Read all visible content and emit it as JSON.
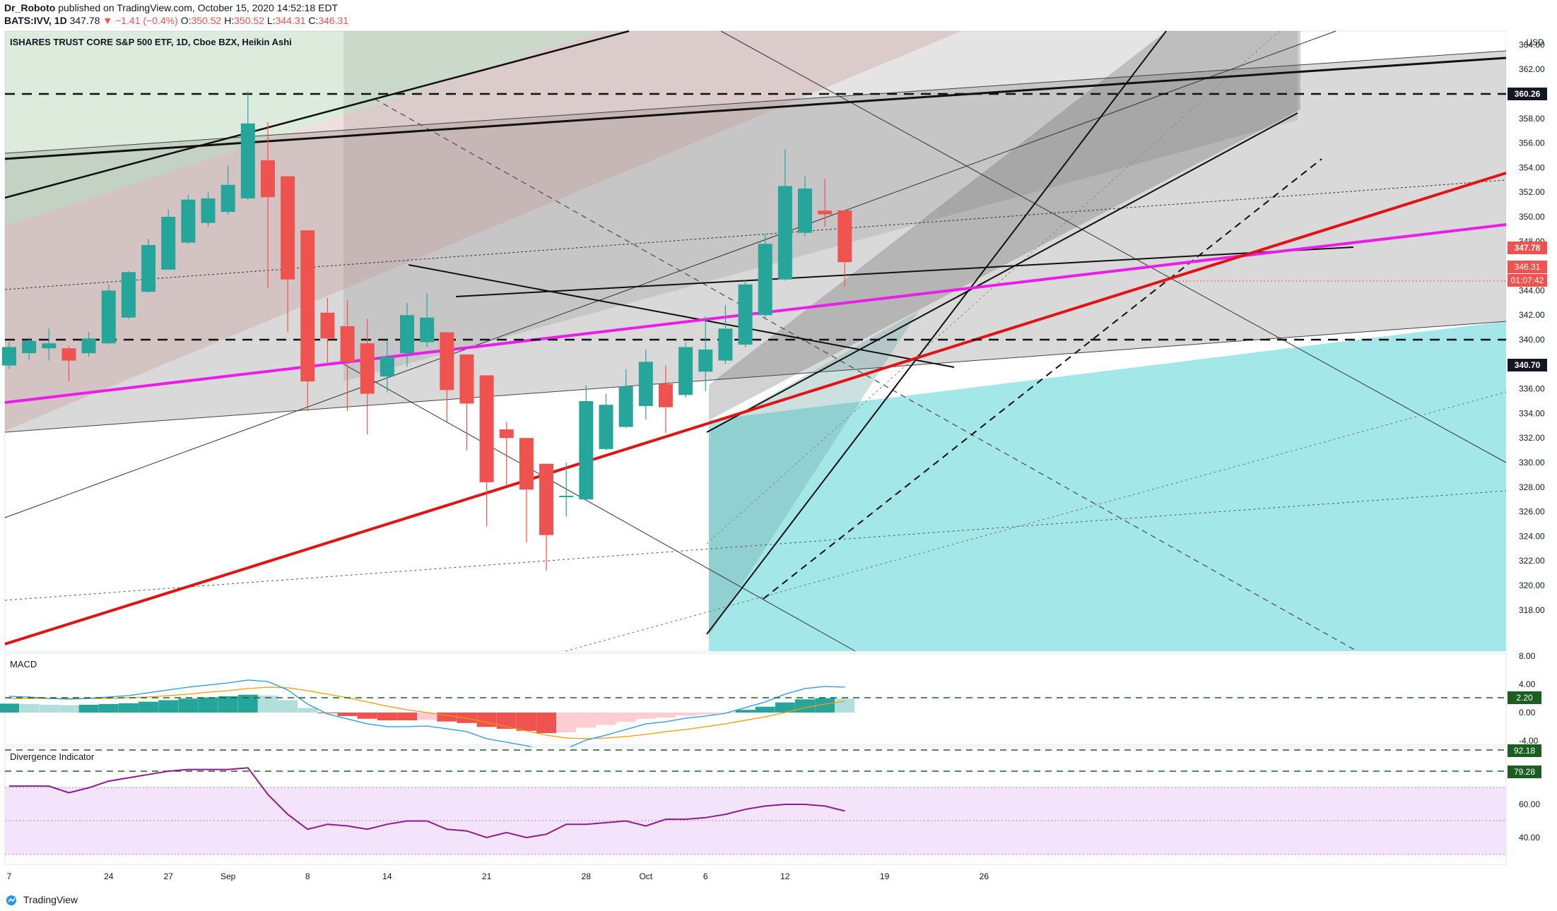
{
  "header": {
    "author": "Dr_Roboto",
    "published_text": "published on TradingView.com, October 15, 2020 14:52:18 EDT",
    "symbol": "BATS:IVV,",
    "interval": "1D",
    "last": "347.78",
    "arrow": "▼",
    "change": "−1.41 (−0.4%)",
    "open_label": "O:",
    "open": "350.52",
    "high_label": "H:",
    "high": "350.52",
    "low_label": "L:",
    "low": "344.31",
    "close_label": "C:",
    "close": "346.31"
  },
  "chart_title": "ISHARES TRUST CORE S&P 500 ETF, 1D, Cboe BZX, Heikin Ashi",
  "currency": "USD",
  "price_axis": [
    "364.00",
    "362.00",
    "360.00",
    "358.00",
    "356.00",
    "354.00",
    "352.00",
    "350.00",
    "348.00",
    "346.00",
    "344.00",
    "342.00",
    "340.00",
    "338.00",
    "336.00",
    "334.00",
    "332.00",
    "330.00",
    "328.00",
    "326.00",
    "324.00",
    "322.00",
    "320.00",
    "318.00"
  ],
  "price_labels": {
    "level_high": "360.26",
    "level_low": "340.70",
    "last_price": "347.78",
    "close_price": "346.31",
    "countdown": "01:07:42"
  },
  "time_axis": [
    "7",
    "24",
    "27",
    "Sep",
    "8",
    "14",
    "21",
    "28",
    "Oct",
    "6",
    "12",
    "19",
    "26"
  ],
  "macd": {
    "label": "MACD",
    "axis": [
      "8.00",
      "4.00",
      "0.00",
      "-4.00"
    ],
    "level": "2.20"
  },
  "divergence": {
    "label": "Divergence Indicator",
    "axis": [
      "60.00",
      "40.00"
    ],
    "level_upper": "92.18",
    "level_lower": "79.28"
  },
  "footer": {
    "brand": "TradingView"
  },
  "colors": {
    "up": "#26a69a",
    "down": "#ef5350",
    "magenta": "#e91ee9",
    "trend_red": "#e01414",
    "macd_line": "#2196f3",
    "signal_line": "#ff9800",
    "div_line": "#8e1c8e"
  },
  "chart_data": {
    "type": "candlestick",
    "title": "ISHARES TRUST CORE S&P 500 ETF, 1D, Cboe BZX, Heikin Ashi",
    "y_range": [
      317,
      365
    ],
    "candles": [
      {
        "o": 337.9,
        "c": 339.4,
        "h": 339.8,
        "l": 337.6
      },
      {
        "o": 338.9,
        "c": 339.9,
        "h": 340.2,
        "l": 338.3
      },
      {
        "o": 339.3,
        "c": 339.7,
        "h": 340.9,
        "l": 338.3
      },
      {
        "o": 339.3,
        "c": 338.3,
        "h": 339.5,
        "l": 336.6
      },
      {
        "o": 338.9,
        "c": 340.1,
        "h": 340.6,
        "l": 338.6
      },
      {
        "o": 339.7,
        "c": 344.0,
        "h": 344.5,
        "l": 339.6
      },
      {
        "o": 341.8,
        "c": 345.5,
        "h": 345.6,
        "l": 341.7
      },
      {
        "o": 343.9,
        "c": 347.7,
        "h": 348.2,
        "l": 343.8
      },
      {
        "o": 345.7,
        "c": 350.0,
        "h": 350.6,
        "l": 345.7
      },
      {
        "o": 347.9,
        "c": 351.4,
        "h": 351.8,
        "l": 347.8
      },
      {
        "o": 349.5,
        "c": 351.5,
        "h": 352.0,
        "l": 349.2
      },
      {
        "o": 350.4,
        "c": 352.6,
        "h": 354.2,
        "l": 350.2
      },
      {
        "o": 351.5,
        "c": 357.6,
        "h": 360.2,
        "l": 351.4
      },
      {
        "o": 354.6,
        "c": 351.6,
        "h": 357.7,
        "l": 344.2
      },
      {
        "o": 353.3,
        "c": 344.9,
        "h": 353.3,
        "l": 340.6
      },
      {
        "o": 348.9,
        "c": 336.6,
        "h": 348.9,
        "l": 334.2
      },
      {
        "o": 342.2,
        "c": 340.1,
        "h": 343.4,
        "l": 337.9
      },
      {
        "o": 341.1,
        "c": 338.2,
        "h": 343.2,
        "l": 334.2
      },
      {
        "o": 339.7,
        "c": 335.6,
        "h": 341.7,
        "l": 332.3
      },
      {
        "o": 337.0,
        "c": 338.6,
        "h": 339.9,
        "l": 335.7
      },
      {
        "o": 338.9,
        "c": 342.0,
        "h": 343.0,
        "l": 337.8
      },
      {
        "o": 339.8,
        "c": 341.8,
        "h": 343.8,
        "l": 339.4
      },
      {
        "o": 340.6,
        "c": 335.9,
        "h": 340.6,
        "l": 333.3
      },
      {
        "o": 338.8,
        "c": 334.8,
        "h": 338.8,
        "l": 331.0
      },
      {
        "o": 337.1,
        "c": 328.4,
        "h": 337.1,
        "l": 324.8
      },
      {
        "o": 332.7,
        "c": 332.0,
        "h": 333.3,
        "l": 328.1
      },
      {
        "o": 332.0,
        "c": 327.8,
        "h": 332.0,
        "l": 323.5
      },
      {
        "o": 329.9,
        "c": 324.1,
        "h": 329.9,
        "l": 321.2
      },
      {
        "o": 327.2,
        "c": 327.3,
        "h": 330.0,
        "l": 325.6
      },
      {
        "o": 327.0,
        "c": 335.0,
        "h": 336.3,
        "l": 327.0
      },
      {
        "o": 331.1,
        "c": 334.7,
        "h": 335.6,
        "l": 331.0
      },
      {
        "o": 332.9,
        "c": 336.2,
        "h": 337.6,
        "l": 332.8
      },
      {
        "o": 334.6,
        "c": 338.2,
        "h": 339.2,
        "l": 333.5
      },
      {
        "o": 336.4,
        "c": 334.5,
        "h": 337.9,
        "l": 332.4
      },
      {
        "o": 335.5,
        "c": 339.4,
        "h": 339.8,
        "l": 335.3
      },
      {
        "o": 337.4,
        "c": 339.2,
        "h": 341.9,
        "l": 335.8
      },
      {
        "o": 338.3,
        "c": 340.9,
        "h": 342.8,
        "l": 338.0
      },
      {
        "o": 339.6,
        "c": 344.5,
        "h": 344.8,
        "l": 339.4
      },
      {
        "o": 342.0,
        "c": 347.8,
        "h": 348.6,
        "l": 341.8
      },
      {
        "o": 344.9,
        "c": 352.5,
        "h": 355.5,
        "l": 344.8
      },
      {
        "o": 348.7,
        "c": 352.3,
        "h": 353.3,
        "l": 348.4
      },
      {
        "o": 350.5,
        "c": 350.2,
        "h": 353.1,
        "l": 349.2
      },
      {
        "o": 350.52,
        "c": 346.31,
        "h": 350.52,
        "l": 344.31
      }
    ],
    "macd_line": [
      2.3,
      2.2,
      2.0,
      1.9,
      2.0,
      2.2,
      2.4,
      2.8,
      3.2,
      3.6,
      3.9,
      4.2,
      4.6,
      4.4,
      3.2,
      1.2,
      -0.2,
      -0.9,
      -1.6,
      -2.0,
      -2.0,
      -1.9,
      -2.3,
      -2.7,
      -3.7,
      -4.2,
      -4.7,
      -5.3,
      -5.1,
      -3.9,
      -3.2,
      -2.4,
      -1.6,
      -1.3,
      -0.8,
      -0.5,
      -0.1,
      0.7,
      1.5,
      2.6,
      3.4,
      3.7,
      3.6
    ],
    "signal_line": [
      2.0,
      2.0,
      2.0,
      2.0,
      2.0,
      2.0,
      2.1,
      2.2,
      2.4,
      2.6,
      2.9,
      3.1,
      3.4,
      3.6,
      3.5,
      3.1,
      2.6,
      2.1,
      1.5,
      0.9,
      0.4,
      0.0,
      -0.4,
      -0.8,
      -1.4,
      -2.0,
      -2.6,
      -3.2,
      -3.6,
      -3.7,
      -3.6,
      -3.4,
      -3.1,
      -2.7,
      -2.4,
      -2.0,
      -1.6,
      -1.1,
      -0.6,
      0.0,
      0.7,
      1.2,
      1.6
    ],
    "divergence_line": [
      71,
      71,
      71,
      67,
      70,
      74,
      76,
      78,
      80,
      81,
      81,
      81,
      82,
      66,
      54,
      45,
      48,
      47,
      45,
      48,
      50,
      50,
      45,
      44,
      40,
      43,
      40,
      42,
      48,
      48,
      49,
      50,
      47,
      51,
      51,
      52,
      54,
      57,
      59,
      60,
      60,
      59,
      56
    ]
  }
}
